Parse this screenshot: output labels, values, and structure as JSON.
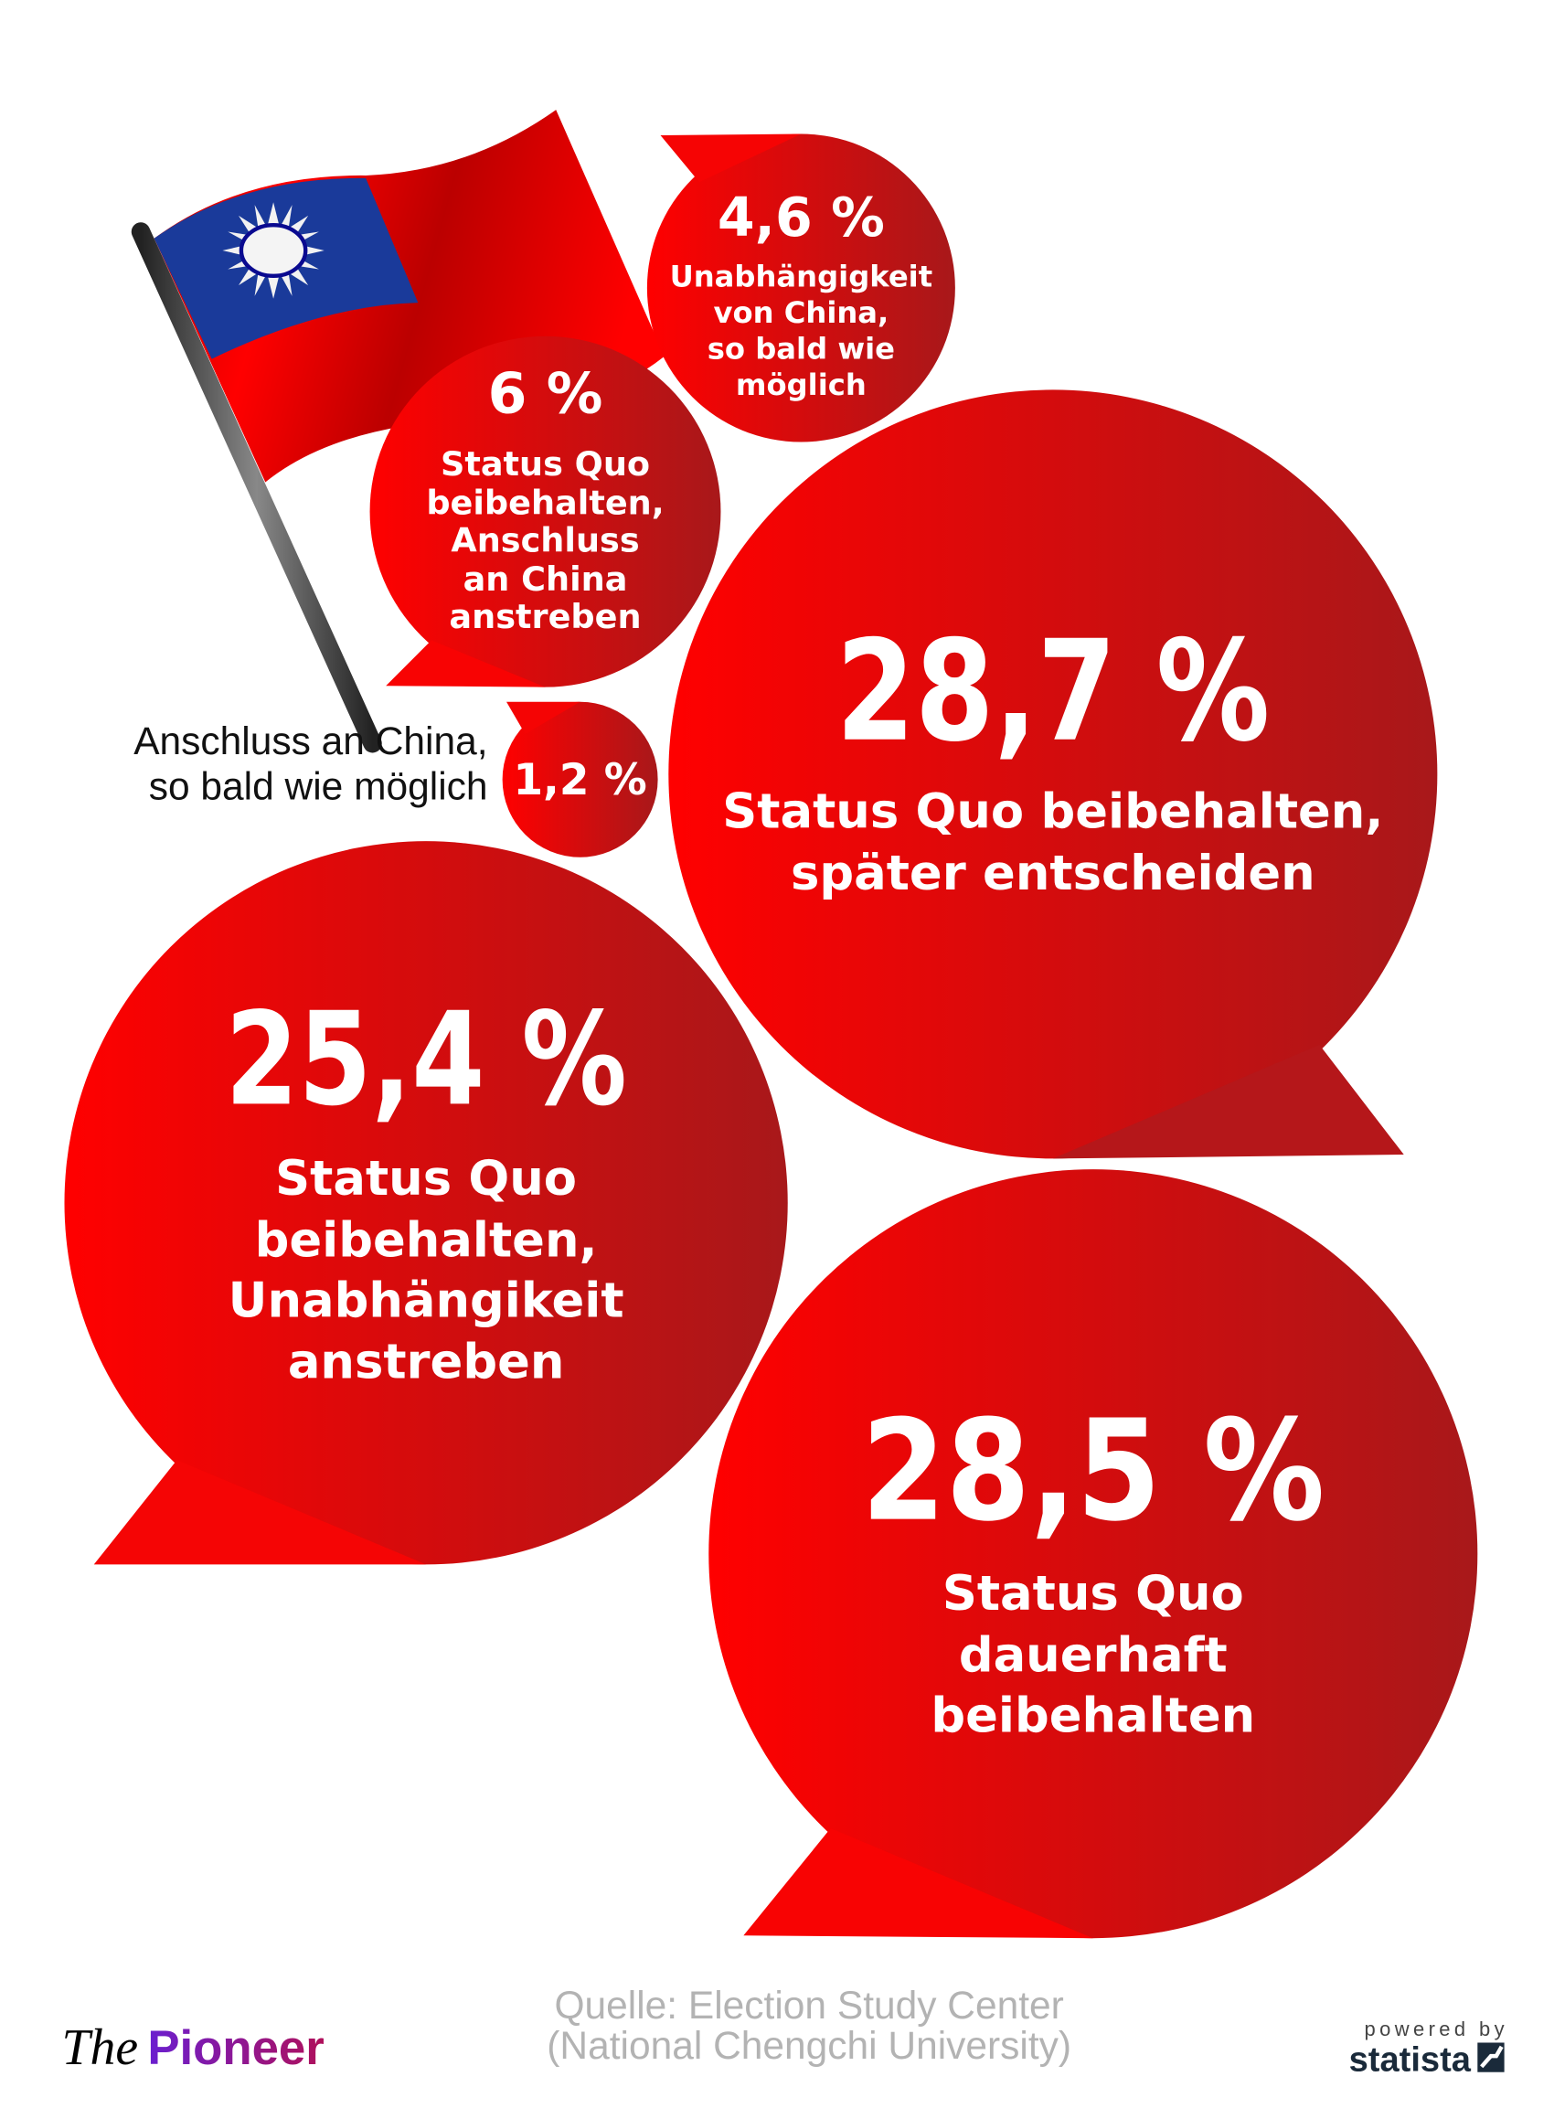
{
  "chart_data": {
    "type": "bubble",
    "title": "",
    "unit": "%",
    "categories": [
      "Unabhängigkeit von China, so bald wie möglich",
      "Status Quo beibehalten, Anschluss an China anstreben",
      "Anschluss an China, so bald wie möglich",
      "Status Quo beibehalten, später entscheiden",
      "Status Quo beibehalten, Unabhängikeit anstreben",
      "Status Quo dauerhaft beibehalten"
    ],
    "values": [
      4.6,
      6,
      1.2,
      28.7,
      25.4,
      28.5
    ],
    "labels": {
      "b1_value": "4,6 %",
      "b1_l1": "Unabhängigkeit",
      "b1_l2": "von China,",
      "b1_l3": "so bald wie",
      "b1_l4": "möglich",
      "b2_value": "6 %",
      "b2_l1": "Status Quo",
      "b2_l2": "beibehalten,",
      "b2_l3": "Anschluss",
      "b2_l4": "an China",
      "b2_l5": "anstreben",
      "b3_value": "1,2 %",
      "b3_l1": "Anschluss an China,",
      "b3_l2": "so bald wie möglich",
      "b4_value": "28,7 %",
      "b4_l1": "Status Quo beibehalten,",
      "b4_l2": "später entscheiden",
      "b5_value": "25,4 %",
      "b5_l1": "Status Quo",
      "b5_l2": "beibehalten,",
      "b5_l3": "Unabhängikeit",
      "b5_l4": "anstreben",
      "b6_value": "28,5 %",
      "b6_l1": "Status Quo",
      "b6_l2": "dauerhaft",
      "b6_l3": "beibehalten"
    }
  },
  "colors": {
    "bubble_start": "#ff0000",
    "bubble_end": "#a8181a",
    "flag_blue": "#1a3a9a",
    "flag_red": "#e00000"
  },
  "footer": {
    "source_line1": "Quelle: Election Study Center",
    "source_line2": "(National Chengchi University)",
    "brand_the": "The",
    "brand_pioneer": "Pioneer",
    "powered_by": "powered by",
    "statista": "statista"
  }
}
